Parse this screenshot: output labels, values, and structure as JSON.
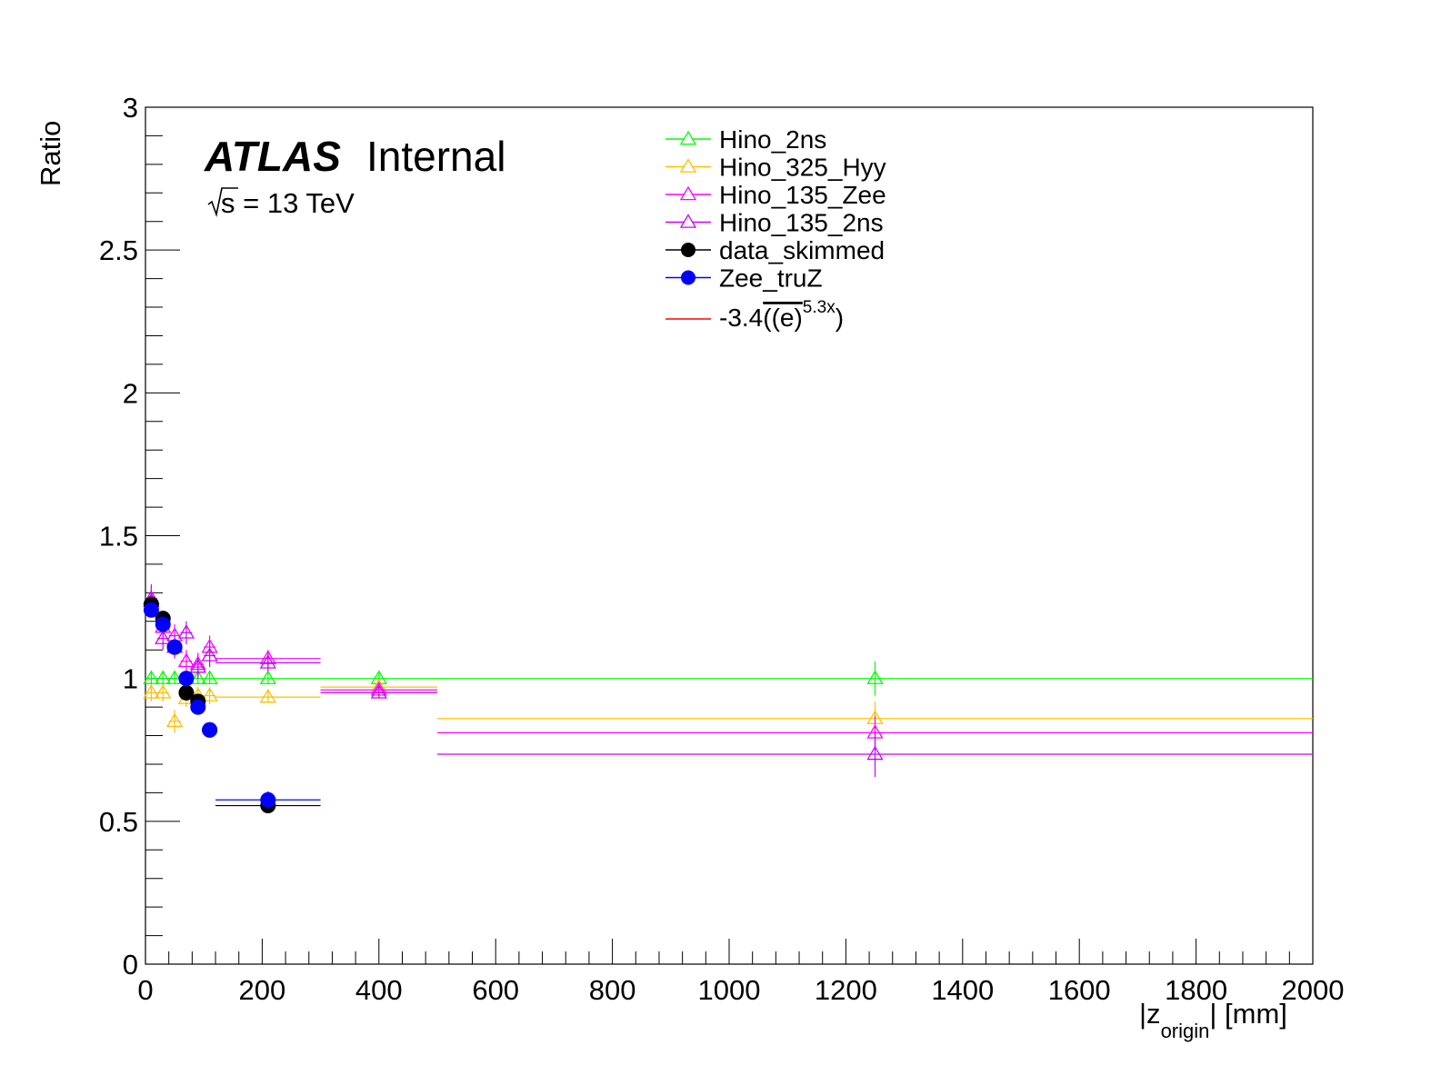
{
  "chart_data": {
    "type": "scatter",
    "xlabel": "|z",
    "xlabel_sub": "origin",
    "xlabel_unit": "| [mm]",
    "ylabel": "Ratio",
    "xlim": [
      0,
      2000
    ],
    "ylim": [
      0,
      3
    ],
    "x_ticks": [
      "0",
      "200",
      "400",
      "600",
      "800",
      "1000",
      "1200",
      "1400",
      "1600",
      "1800",
      "2000"
    ],
    "y_ticks": [
      "0",
      "0.5",
      "1",
      "1.5",
      "2",
      "2.5",
      "3"
    ],
    "atlas_label": "ATLAS",
    "atlas_status": "Internal",
    "energy_prefix": "s = 13 TeV",
    "legend_position": "top-center",
    "series": [
      {
        "name": "Hino_2ns",
        "color": "#00ff00",
        "marker": "open-triangle",
        "points": [
          {
            "x": 10,
            "xlo": 0,
            "xhi": 20,
            "y": 1.0,
            "yerr": 0.02
          },
          {
            "x": 30,
            "xlo": 20,
            "xhi": 40,
            "y": 1.0,
            "yerr": 0.02
          },
          {
            "x": 50,
            "xlo": 40,
            "xhi": 60,
            "y": 1.0,
            "yerr": 0.02
          },
          {
            "x": 70,
            "xlo": 60,
            "xhi": 80,
            "y": 1.0,
            "yerr": 0.02
          },
          {
            "x": 90,
            "xlo": 80,
            "xhi": 100,
            "y": 1.0,
            "yerr": 0.02
          },
          {
            "x": 110,
            "xlo": 100,
            "xhi": 120,
            "y": 1.0,
            "yerr": 0.02
          },
          {
            "x": 210,
            "xlo": 120,
            "xhi": 300,
            "y": 1.0,
            "yerr": 0.02
          },
          {
            "x": 400,
            "xlo": 300,
            "xhi": 500,
            "y": 1.0,
            "yerr": 0.02
          },
          {
            "x": 1250,
            "xlo": 500,
            "xhi": 2000,
            "y": 1.0,
            "yerr": 0.06
          }
        ]
      },
      {
        "name": "Hino_325_Hyy",
        "color": "#ffbf00",
        "marker": "open-triangle",
        "points": [
          {
            "x": 10,
            "xlo": 0,
            "xhi": 20,
            "y": 0.95,
            "yerr": 0.03
          },
          {
            "x": 30,
            "xlo": 20,
            "xhi": 40,
            "y": 0.95,
            "yerr": 0.03
          },
          {
            "x": 50,
            "xlo": 40,
            "xhi": 60,
            "y": 0.85,
            "yerr": 0.04
          },
          {
            "x": 70,
            "xlo": 60,
            "xhi": 80,
            "y": 0.93,
            "yerr": 0.03
          },
          {
            "x": 90,
            "xlo": 80,
            "xhi": 100,
            "y": 0.94,
            "yerr": 0.03
          },
          {
            "x": 110,
            "xlo": 100,
            "xhi": 120,
            "y": 0.94,
            "yerr": 0.03
          },
          {
            "x": 210,
            "xlo": 120,
            "xhi": 300,
            "y": 0.935,
            "yerr": 0.02
          },
          {
            "x": 400,
            "xlo": 300,
            "xhi": 500,
            "y": 0.97,
            "yerr": 0.02
          },
          {
            "x": 1250,
            "xlo": 500,
            "xhi": 2000,
            "y": 0.86,
            "yerr": 0.06
          }
        ]
      },
      {
        "name": "Hino_135_Zee",
        "color": "#ff00ff",
        "marker": "open-triangle",
        "points": [
          {
            "x": 10,
            "xlo": 0,
            "xhi": 20,
            "y": 1.27,
            "yerr": 0.05
          },
          {
            "x": 30,
            "xlo": 20,
            "xhi": 40,
            "y": 1.18,
            "yerr": 0.04
          },
          {
            "x": 50,
            "xlo": 40,
            "xhi": 60,
            "y": 1.15,
            "yerr": 0.04
          },
          {
            "x": 70,
            "xlo": 60,
            "xhi": 80,
            "y": 1.06,
            "yerr": 0.04
          },
          {
            "x": 90,
            "xlo": 80,
            "xhi": 100,
            "y": 1.05,
            "yerr": 0.04
          },
          {
            "x": 110,
            "xlo": 100,
            "xhi": 120,
            "y": 1.11,
            "yerr": 0.04
          },
          {
            "x": 210,
            "xlo": 120,
            "xhi": 300,
            "y": 1.07,
            "yerr": 0.03
          },
          {
            "x": 400,
            "xlo": 300,
            "xhi": 500,
            "y": 0.96,
            "yerr": 0.02
          },
          {
            "x": 1250,
            "xlo": 500,
            "xhi": 2000,
            "y": 0.81,
            "yerr": 0.06
          }
        ]
      },
      {
        "name": "Hino_135_2ns",
        "color": "#cc00ff",
        "marker": "open-triangle",
        "points": [
          {
            "x": 10,
            "xlo": 0,
            "xhi": 20,
            "y": 1.28,
            "yerr": 0.05
          },
          {
            "x": 30,
            "xlo": 20,
            "xhi": 40,
            "y": 1.14,
            "yerr": 0.04
          },
          {
            "x": 50,
            "xlo": 40,
            "xhi": 60,
            "y": 1.11,
            "yerr": 0.04
          },
          {
            "x": 70,
            "xlo": 60,
            "xhi": 80,
            "y": 1.16,
            "yerr": 0.04
          },
          {
            "x": 90,
            "xlo": 80,
            "xhi": 100,
            "y": 1.04,
            "yerr": 0.04
          },
          {
            "x": 110,
            "xlo": 100,
            "xhi": 120,
            "y": 1.08,
            "yerr": 0.04
          },
          {
            "x": 210,
            "xlo": 120,
            "xhi": 300,
            "y": 1.055,
            "yerr": 0.03
          },
          {
            "x": 400,
            "xlo": 300,
            "xhi": 500,
            "y": 0.95,
            "yerr": 0.02
          },
          {
            "x": 1250,
            "xlo": 500,
            "xhi": 2000,
            "y": 0.735,
            "yerr": 0.08
          }
        ]
      },
      {
        "name": "data_skimmed",
        "color": "#000000",
        "marker": "filled-circle",
        "points": [
          {
            "x": 10,
            "xlo": 0,
            "xhi": 20,
            "y": 1.26,
            "yerr": 0.01
          },
          {
            "x": 30,
            "xlo": 20,
            "xhi": 40,
            "y": 1.21,
            "yerr": 0.01
          },
          {
            "x": 50,
            "xlo": 40,
            "xhi": 60,
            "y": 1.11,
            "yerr": 0.01
          },
          {
            "x": 70,
            "xlo": 60,
            "xhi": 80,
            "y": 0.95,
            "yerr": 0.01
          },
          {
            "x": 90,
            "xlo": 80,
            "xhi": 100,
            "y": 0.92,
            "yerr": 0.01
          },
          {
            "x": 110,
            "xlo": 100,
            "xhi": 120,
            "y": 0.82,
            "yerr": 0.01
          },
          {
            "x": 210,
            "xlo": 120,
            "xhi": 300,
            "y": 0.555,
            "yerr": 0.01
          }
        ]
      },
      {
        "name": "Zee_truZ",
        "color": "#0000ff",
        "marker": "filled-circle",
        "points": [
          {
            "x": 10,
            "xlo": 0,
            "xhi": 20,
            "y": 1.24,
            "yerr": 0.01
          },
          {
            "x": 30,
            "xlo": 20,
            "xhi": 40,
            "y": 1.19,
            "yerr": 0.01
          },
          {
            "x": 50,
            "xlo": 40,
            "xhi": 60,
            "y": 1.11,
            "yerr": 0.01
          },
          {
            "x": 70,
            "xlo": 60,
            "xhi": 80,
            "y": 1.0,
            "yerr": 0.01
          },
          {
            "x": 90,
            "xlo": 80,
            "xhi": 100,
            "y": 0.9,
            "yerr": 0.01
          },
          {
            "x": 110,
            "xlo": 100,
            "xhi": 120,
            "y": 0.82,
            "yerr": 0.01
          },
          {
            "x": 210,
            "xlo": 120,
            "xhi": 300,
            "y": 0.575,
            "yerr": 0.03
          }
        ]
      }
    ],
    "fit_legend": {
      "color": "#ff0000",
      "text_main": "-3.4",
      "text_paren": "((e)",
      "text_exp": "5.3x",
      "text_close": ")"
    }
  }
}
